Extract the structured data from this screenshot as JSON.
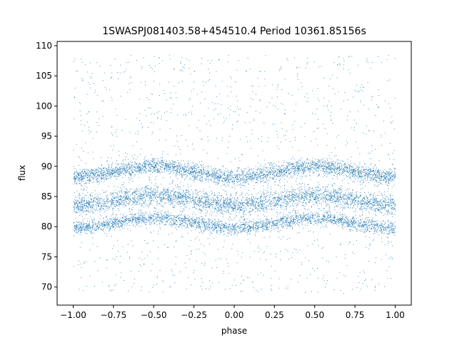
{
  "chart_data": {
    "type": "scatter",
    "title": "1SWASPJ081403.58+454510.4 Period 10361.85156s",
    "xlabel": "phase",
    "ylabel": "flux",
    "xlim": [
      -1.1,
      1.1
    ],
    "ylim": [
      67.0,
      110.7
    ],
    "x_ticks": [
      -1.0,
      -0.75,
      -0.5,
      -0.25,
      0.0,
      0.25,
      0.5,
      0.75,
      1.0
    ],
    "x_tick_labels": [
      "−1.00",
      "−0.75",
      "−0.50",
      "−0.25",
      "0.00",
      "0.25",
      "0.50",
      "0.75",
      "1.00"
    ],
    "y_ticks": [
      70,
      75,
      80,
      85,
      90,
      95,
      100,
      105,
      110
    ],
    "y_tick_labels": [
      "70",
      "75",
      "80",
      "85",
      "90",
      "95",
      "100",
      "105",
      "110"
    ],
    "grid": false,
    "legend": "none",
    "marker_color": "#1f77b4",
    "series": [
      {
        "band": "upper",
        "phase_range": [
          -1.0,
          1.0
        ],
        "flux_profile": [
          {
            "phase": -1.0,
            "flux": 88.3
          },
          {
            "phase": -0.5,
            "flux": 90.0
          },
          {
            "phase": 0.0,
            "flux": 88.2
          },
          {
            "phase": 0.5,
            "flux": 90.0
          },
          {
            "phase": 1.0,
            "flux": 88.3
          }
        ],
        "spread": 1.2
      },
      {
        "band": "middle",
        "phase_range": [
          -1.0,
          1.0
        ],
        "flux_profile": [
          {
            "phase": -1.0,
            "flux": 83.6
          },
          {
            "phase": -0.5,
            "flux": 85.2
          },
          {
            "phase": 0.0,
            "flux": 83.6
          },
          {
            "phase": 0.5,
            "flux": 85.2
          },
          {
            "phase": 1.0,
            "flux": 83.6
          }
        ],
        "spread": 1.5
      },
      {
        "band": "lower",
        "phase_range": [
          -1.0,
          1.0
        ],
        "flux_profile": [
          {
            "phase": -1.0,
            "flux": 79.8
          },
          {
            "phase": -0.5,
            "flux": 81.5
          },
          {
            "phase": 0.0,
            "flux": 79.8
          },
          {
            "phase": 0.5,
            "flux": 81.5
          },
          {
            "phase": 1.0,
            "flux": 79.8
          }
        ],
        "spread": 1.0
      },
      {
        "band": "scatter",
        "phase_range": [
          -1.0,
          1.0
        ],
        "flux_range": [
          69.0,
          108.5
        ]
      }
    ]
  }
}
